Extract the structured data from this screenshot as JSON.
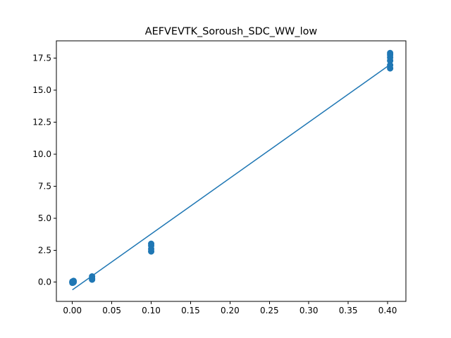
{
  "chart_data": {
    "type": "scatter",
    "title": "AEFVEVTK_Soroush_SDC_WW_low",
    "xlabel": "",
    "ylabel": "",
    "xlim": [
      -0.0203,
      0.4232
    ],
    "ylim": [
      -1.5,
      18.85
    ],
    "x_ticks": [
      0.0,
      0.05,
      0.1,
      0.15,
      0.2,
      0.25,
      0.3,
      0.35,
      0.4
    ],
    "x_tick_labels": [
      "0.00",
      "0.05",
      "0.10",
      "0.15",
      "0.20",
      "0.25",
      "0.30",
      "0.35",
      "0.40"
    ],
    "y_ticks": [
      0.0,
      2.5,
      5.0,
      7.5,
      10.0,
      12.5,
      15.0,
      17.5
    ],
    "y_tick_labels": [
      "0.0",
      "2.5",
      "5.0",
      "7.5",
      "10.0",
      "12.5",
      "15.0",
      "17.5"
    ],
    "grid": false,
    "color": "#1f77b4",
    "series": [
      {
        "kind": "scatter",
        "points": [
          {
            "x": 0.0,
            "y": 0.0
          },
          {
            "x": 0.0,
            "y": 0.05
          },
          {
            "x": 0.0,
            "y": -0.05
          },
          {
            "x": 0.001,
            "y": 0.02
          },
          {
            "x": 0.001,
            "y": 0.08
          },
          {
            "x": 0.001,
            "y": -0.03
          },
          {
            "x": 0.0016,
            "y": 0.0
          },
          {
            "x": 0.0016,
            "y": 0.06
          },
          {
            "x": 0.0016,
            "y": 0.1
          },
          {
            "x": 0.025,
            "y": 0.2
          },
          {
            "x": 0.025,
            "y": 0.3
          },
          {
            "x": 0.025,
            "y": 0.45
          },
          {
            "x": 0.1,
            "y": 2.4
          },
          {
            "x": 0.1,
            "y": 2.6
          },
          {
            "x": 0.1,
            "y": 2.85
          },
          {
            "x": 0.1,
            "y": 3.0
          },
          {
            "x": 0.4032,
            "y": 16.7
          },
          {
            "x": 0.4032,
            "y": 16.95
          },
          {
            "x": 0.4032,
            "y": 17.3
          },
          {
            "x": 0.4032,
            "y": 17.55
          },
          {
            "x": 0.4032,
            "y": 17.75
          },
          {
            "x": 0.4032,
            "y": 17.9
          }
        ]
      },
      {
        "kind": "line",
        "points": [
          {
            "x": 0.0,
            "y": -0.6
          },
          {
            "x": 0.4032,
            "y": 17.0
          }
        ]
      }
    ]
  }
}
